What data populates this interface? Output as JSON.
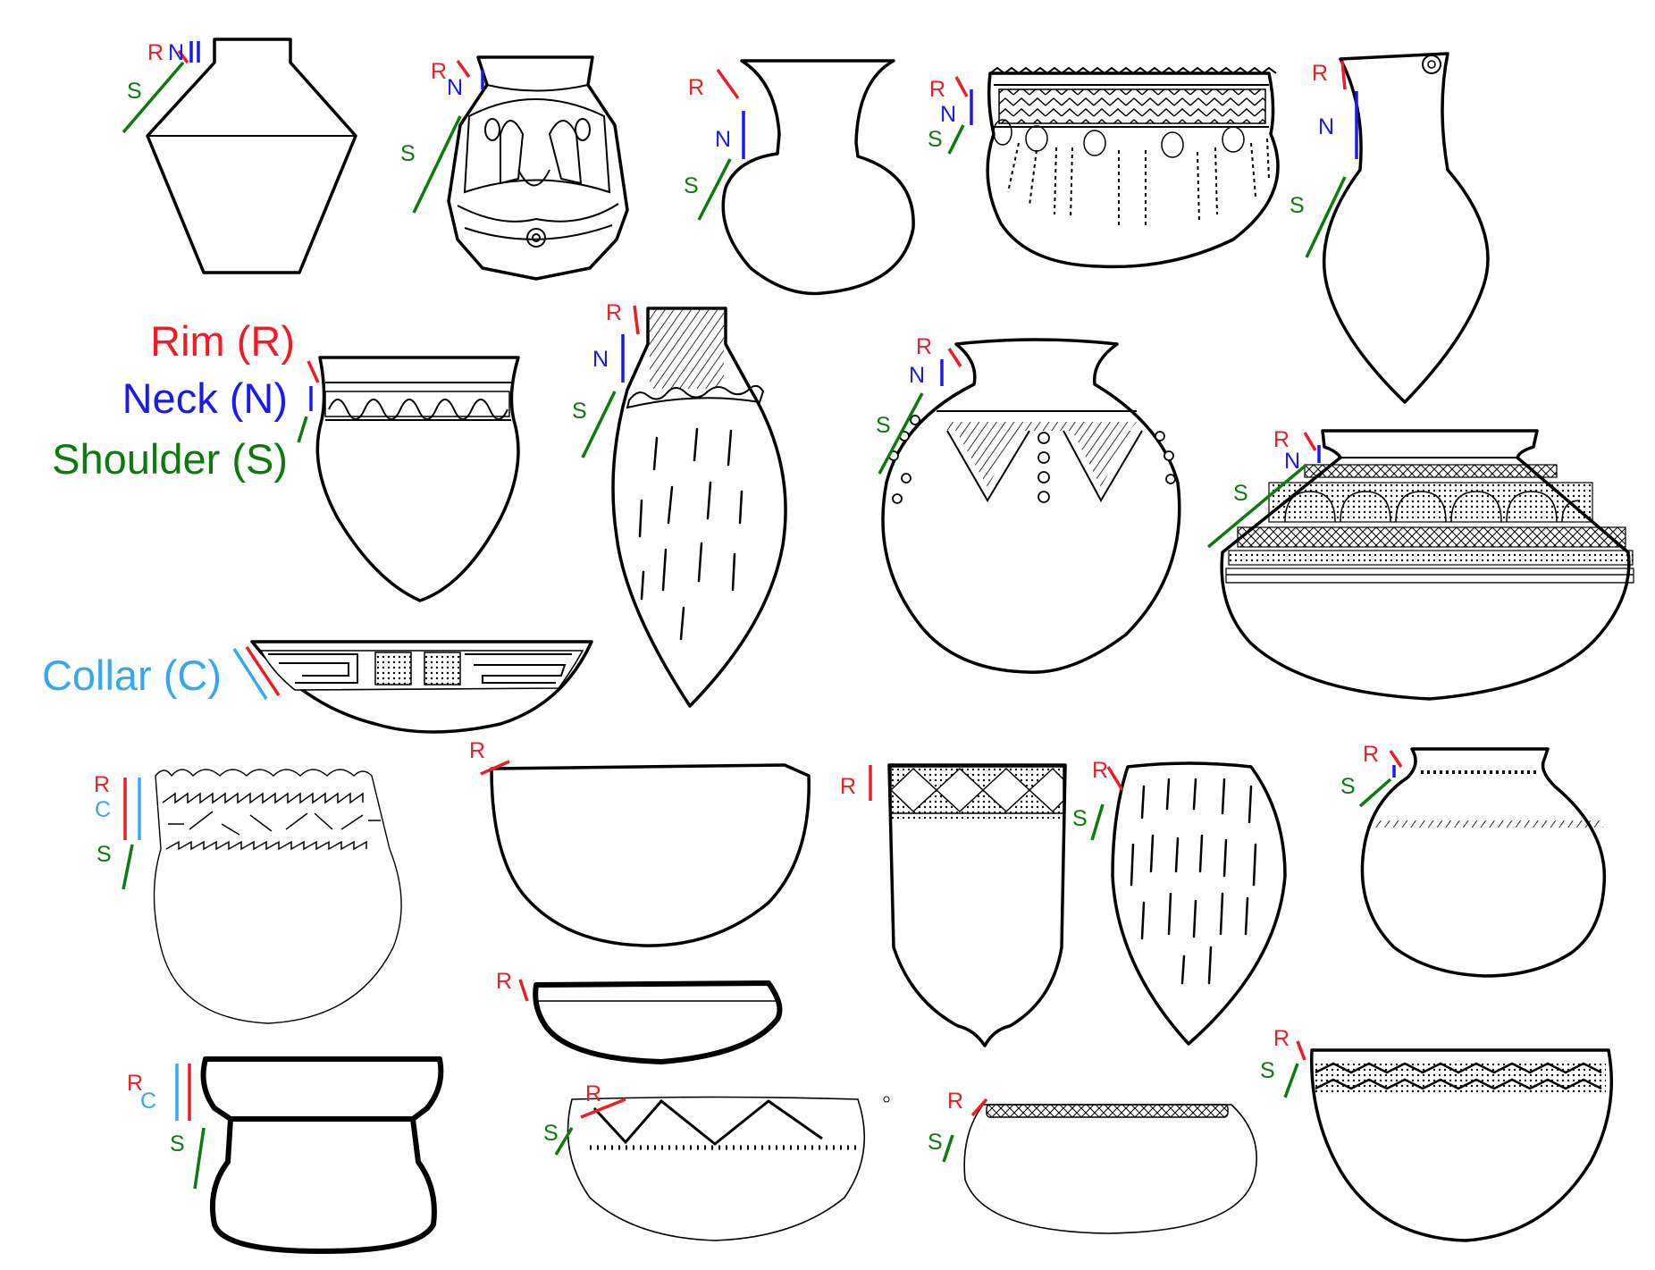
{
  "colors": {
    "rim": "#ee1c25",
    "neck": "#1a1aee",
    "shoulder": "#0c7a0c",
    "collar": "#35a8ee",
    "outline": "#000000"
  },
  "legend": {
    "rim": "Rim (R)",
    "neck": "Neck (N)",
    "shoulder": "Shoulder (S)",
    "collar": "Collar (C)"
  },
  "marks": {
    "rim": "R",
    "neck": "N",
    "shoulder": "S",
    "collar": "C"
  }
}
